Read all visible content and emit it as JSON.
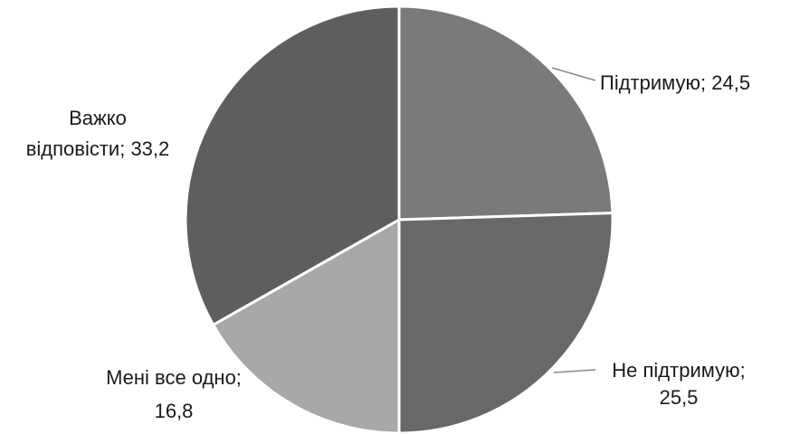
{
  "chart_data": {
    "type": "pie",
    "title": "",
    "slices": [
      {
        "label": "Підтримую",
        "value": 24.5,
        "color": "#7a7a7a",
        "line1": "Підтримую; 24,5",
        "line2": ""
      },
      {
        "label": "Не підтримую",
        "value": 25.5,
        "color": "#686868",
        "line1": "Не підтримую;",
        "line2": "25,5"
      },
      {
        "label": "Мені все одно",
        "value": 16.8,
        "color": "#a8a8a8",
        "line1": "Мені все одно;",
        "line2": "16,8"
      },
      {
        "label": "Важко відповісти",
        "value": 33.2,
        "color": "#5e5e5e",
        "line1": "Важко",
        "line2": "відповісти; 33,2"
      }
    ]
  }
}
